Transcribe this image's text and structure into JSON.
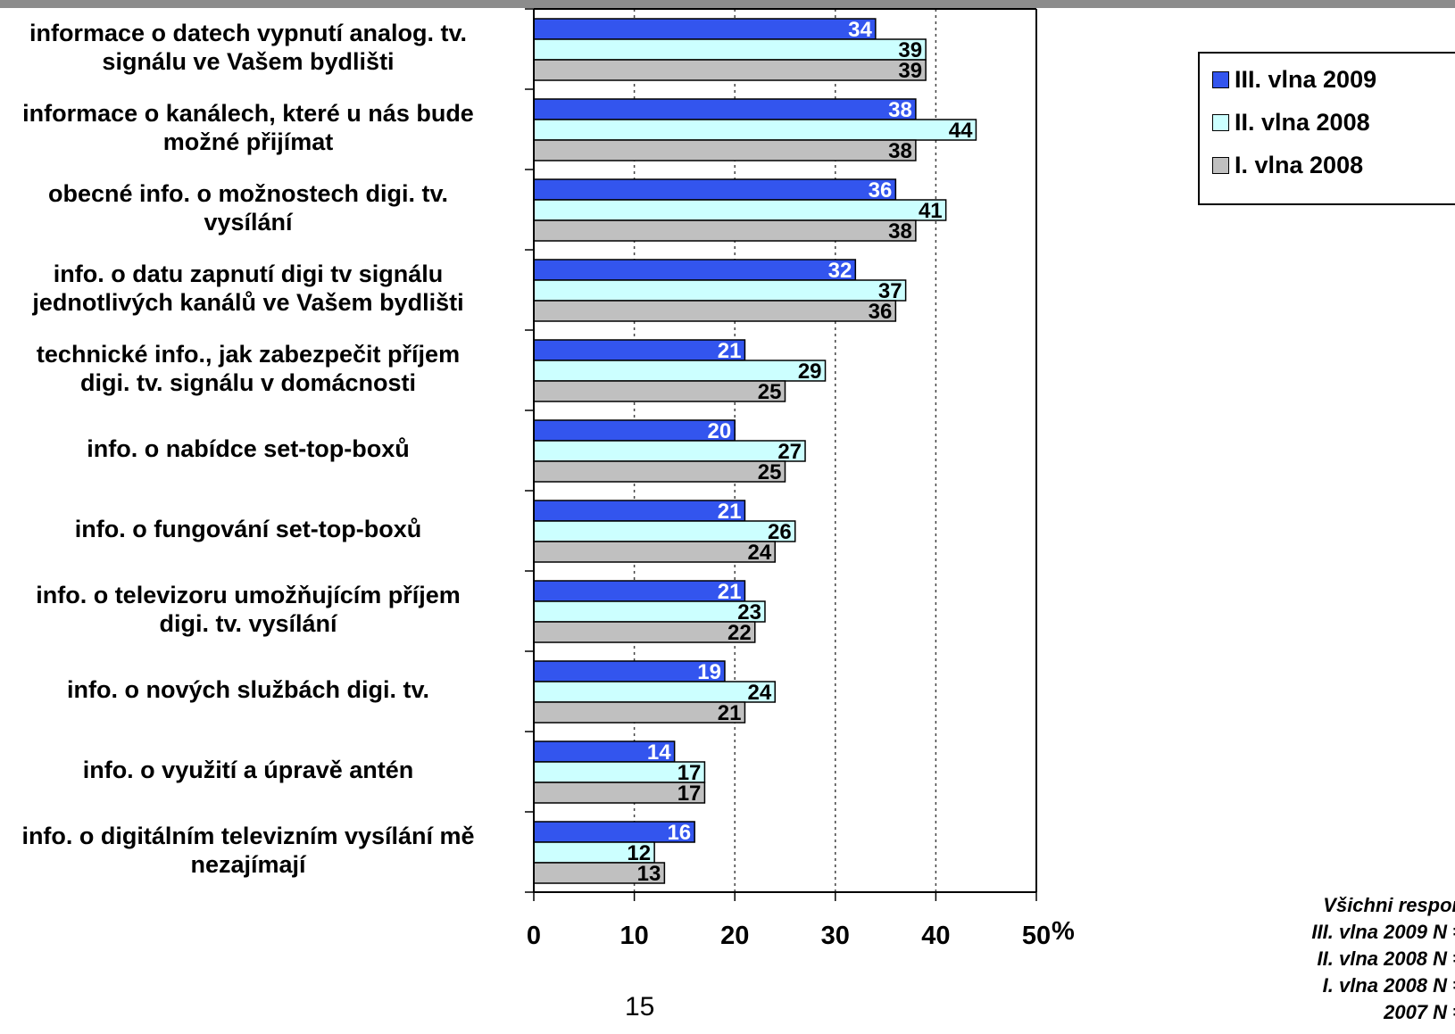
{
  "chart_data": {
    "type": "bar",
    "orientation": "horizontal",
    "categories": [
      "informace o datech vypnutí analog. tv. signálu ve Vašem bydlišti",
      "informace o kanálech, které u nás bude možné přijímat",
      "obecné info. o možnostech digi. tv. vysílání",
      "info. o datu zapnutí digi tv signálu jednotlivých kanálů ve Vašem bydlišti",
      "technické info., jak zabezpečit příjem digi. tv. signálu v domácnosti",
      "info. o nabídce set-top-boxů",
      "info. o fungování set-top-boxů",
      "info. o televizoru umožňujícím příjem digi. tv. vysílání",
      "info. o nových službách digi. tv.",
      "info. o využití a úpravě antén",
      "info. o digitálním televizním vysílání mě nezajímají"
    ],
    "series": [
      {
        "name": "III. vlna 2009",
        "color": "#3355ee",
        "label_color": "#ffffff",
        "values": [
          34,
          38,
          36,
          32,
          21,
          20,
          21,
          21,
          19,
          14,
          16
        ]
      },
      {
        "name": "II. vlna 2008",
        "color": "#ccffff",
        "label_color": "#000000",
        "values": [
          39,
          44,
          41,
          37,
          29,
          27,
          26,
          23,
          24,
          17,
          12
        ]
      },
      {
        "name": "I. vlna 2008",
        "color": "#c0c0c0",
        "label_color": "#000000",
        "values": [
          39,
          38,
          38,
          36,
          25,
          25,
          24,
          22,
          21,
          17,
          13
        ]
      }
    ],
    "xlim": [
      0,
      50
    ],
    "xticks": [
      "0",
      "10",
      "20",
      "30",
      "40",
      "50"
    ],
    "x_unit": "%",
    "grid": "vertical dotted",
    "legend": "right"
  },
  "category_lines": [
    [
      "informace o datech vypnutí analog. tv.",
      "signálu ve Vašem bydlišti"
    ],
    [
      "informace o kanálech, které u nás bude",
      "možné přijímat"
    ],
    [
      "obecné info. o možnostech digi. tv.",
      "vysílání"
    ],
    [
      "info. o datu zapnutí digi tv signálu",
      "jednotlivých kanálů ve Vašem bydlišti"
    ],
    [
      "technické info., jak zabezpečit příjem",
      "digi. tv. signálu v domácnosti"
    ],
    [
      "info. o nabídce set-top-boxů"
    ],
    [
      "info. o fungování set-top-boxů"
    ],
    [
      "info. o televizoru umožňujícím příjem",
      "digi. tv. vysílání"
    ],
    [
      "info. o nových službách digi. tv."
    ],
    [
      "info. o využití a úpravě antén"
    ],
    [
      "info. o digitálním televizním vysílání mě",
      "nezajímají"
    ]
  ],
  "legend": {
    "items": [
      {
        "label": "III. vlna 2009",
        "color": "#3355ee"
      },
      {
        "label": "II. vlna 2008",
        "color": "#ccffff"
      },
      {
        "label": "I. vlna 2008",
        "color": "#c0c0c0"
      }
    ]
  },
  "note": {
    "lines": [
      "Všichni respon",
      "III. vlna 2009 N =",
      "II. vlna 2008 N =",
      "I. vlna 2008 N =",
      "2007 N ="
    ]
  },
  "page_number": "15"
}
